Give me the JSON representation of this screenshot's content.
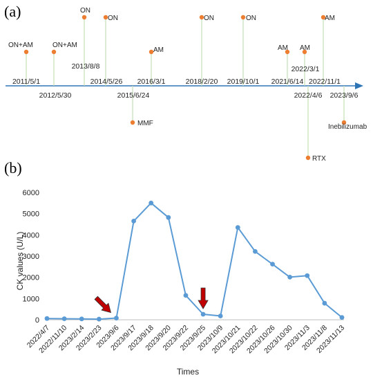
{
  "panels": {
    "a": "(a)",
    "b": "(b)"
  },
  "timeline": {
    "dates": [
      {
        "label": "2011/5/1",
        "side": "above"
      },
      {
        "label": "2012/5/30",
        "side": "below"
      },
      {
        "label": "2013/8/8",
        "side": "above"
      },
      {
        "label": "2014/5/26",
        "side": "above"
      },
      {
        "label": "2015/6/24",
        "side": "below"
      },
      {
        "label": "2016/3/1",
        "side": "above"
      },
      {
        "label": "2018/2/20",
        "side": "above"
      },
      {
        "label": "2019/10/1",
        "side": "above"
      },
      {
        "label": "2021/6/14",
        "side": "above"
      },
      {
        "label": "2022/3/1",
        "side": "above"
      },
      {
        "label": "2022/4/6",
        "side": "below"
      },
      {
        "label": "2022/11/1",
        "side": "above"
      },
      {
        "label": "2023/9/6",
        "side": "below"
      }
    ],
    "events": [
      {
        "label": "ON+AM",
        "date": "2011/5/1"
      },
      {
        "label": "ON+AM",
        "date": "2012/5/30"
      },
      {
        "label": "ON",
        "date": "2013/8/8"
      },
      {
        "label": "ON",
        "date": "2014/5/26"
      },
      {
        "label": "MMF",
        "date": "2015/6/24"
      },
      {
        "label": "AM",
        "date": "2016/3/1"
      },
      {
        "label": "ON",
        "date": "2018/2/20"
      },
      {
        "label": "ON",
        "date": "2019/10/1"
      },
      {
        "label": "AM",
        "date": "2021/6/14"
      },
      {
        "label": "AM",
        "date": "2022/3/1"
      },
      {
        "label": "RTX",
        "date": "2022/4/6"
      },
      {
        "label": "AM",
        "date": "2022/11/1"
      },
      {
        "label": "Inebilizumab",
        "date": "2023/9/6"
      }
    ],
    "colors": {
      "axis": "#2e75b6",
      "stem": "#c5e0b4",
      "dot": "#ed7d31"
    }
  },
  "chart_data": {
    "type": "line",
    "title": "",
    "xlabel": "Times",
    "ylabel": "CK values (U/L)",
    "ylim": [
      0,
      6000
    ],
    "yticks": [
      0,
      1000,
      2000,
      3000,
      4000,
      5000,
      6000
    ],
    "categories": [
      "2022/4/7",
      "2022/11/10",
      "2023/2/14",
      "2023/2/23",
      "2023/9/6",
      "2023/9/17",
      "2023/9/18",
      "2023/9/20",
      "2023/9/22",
      "2023/9/25",
      "2023/10/9",
      "2023/10/21",
      "2023/10/22",
      "2023/10/26",
      "2023/10/30",
      "2023/11/3",
      "2023/11/8",
      "2023/11/13"
    ],
    "series": [
      {
        "values": [
          60,
          50,
          40,
          30,
          80,
          4650,
          5500,
          4820,
          1150,
          260,
          180,
          4350,
          3220,
          2620,
          2010,
          2080,
          780,
          110
        ]
      }
    ],
    "arrows_at": [
      "2023/9/6",
      "2023/9/25"
    ],
    "grid": false,
    "colors": {
      "line": "#5b9bd5",
      "arrow": "#c00000"
    }
  }
}
